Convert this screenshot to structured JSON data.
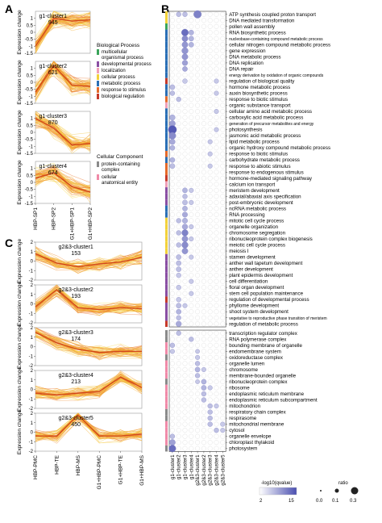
{
  "panels": {
    "A": "A",
    "B": "B",
    "C": "C"
  },
  "y_axis_label": "Expression change",
  "legend": {
    "biological_title": "Biological Process",
    "biological_items": [
      {
        "label": "multicellular organismal process",
        "color": "#3aa55a"
      },
      {
        "label": "developmental process",
        "color": "#8a4fa3"
      },
      {
        "label": "localization",
        "color": "#f0a0b8"
      },
      {
        "label": "cellular process",
        "color": "#f2d13a"
      },
      {
        "label": "metabolic process",
        "color": "#2a6fb5"
      },
      {
        "label": "response to stimulus",
        "color": "#e56a2a"
      },
      {
        "label": "biological regulation",
        "color": "#c63a2a"
      }
    ],
    "cellular_title": "Cellular Component",
    "cellular_items": [
      {
        "label": "protein-containing complex",
        "color": "#8a8a8a"
      },
      {
        "label": "cellular anatomical entity",
        "color": "#f08aa8"
      }
    ]
  },
  "chart_data": [
    {
      "type": "line",
      "panel": "A",
      "x": [
        "HBP-SP1",
        "HBP-SP2",
        "G1+HBP-SP1",
        "G1+HBP-SP2"
      ],
      "ylabel": "Expression change",
      "clusters": [
        {
          "name": "g1-cluster1",
          "count": "945",
          "ylim": [
            -1.5,
            1.5
          ],
          "ticks": [
            1,
            0.5,
            0,
            -0.5,
            -1,
            -1.5
          ],
          "profile": [
            -1.0,
            1.0,
            0.8,
            0.9
          ]
        },
        {
          "name": "g1-cluster2",
          "count": "621",
          "ylim": [
            -1.5,
            1.5
          ],
          "ticks": [
            1,
            0.5,
            0,
            -0.5,
            -1,
            -1.5
          ],
          "profile": [
            -0.7,
            1.2,
            -0.2,
            -0.3
          ]
        },
        {
          "name": "g1-cluster3",
          "count": "870",
          "ylim": [
            -1.5,
            1.5
          ],
          "ticks": [
            1,
            0.5,
            0,
            -0.5,
            -1,
            -1.5
          ],
          "profile": [
            1.0,
            0.3,
            -0.9,
            -0.8
          ]
        },
        {
          "name": "g1-cluster4",
          "count": "674",
          "ylim": [
            -1.5,
            1.5
          ],
          "ticks": [
            1,
            0.5,
            0,
            -0.5,
            -1,
            -1.5
          ],
          "profile": [
            0.3,
            0.7,
            -0.3,
            -0.7
          ]
        }
      ]
    },
    {
      "type": "line",
      "panel": "C",
      "x": [
        "HBP-PMC",
        "HBP-TE",
        "HBP-MS",
        "G1+HBP-PMC",
        "G1+HBP-TE",
        "G1+HBP-MS"
      ],
      "ylabel": "Expression change",
      "clusters": [
        {
          "name": "g2&3-cluster1",
          "count": "153",
          "ylim": [
            -2,
            2
          ],
          "ticks": [
            2,
            1,
            0,
            -1,
            -2
          ],
          "profile": [
            0.8,
            -0.2,
            -0.6,
            -0.3,
            -0.1,
            0.4
          ]
        },
        {
          "name": "g2&3-cluster2",
          "count": "193",
          "ylim": [
            -2,
            2
          ],
          "ticks": [
            2,
            1,
            0,
            -1,
            -2
          ],
          "profile": [
            -0.3,
            1.5,
            -0.4,
            -0.6,
            -0.4,
            -0.5
          ]
        },
        {
          "name": "g2&3-cluster3",
          "count": "174",
          "ylim": [
            -2,
            2
          ],
          "ticks": [
            2,
            1,
            0,
            -1,
            -2
          ],
          "profile": [
            1.5,
            0.4,
            -0.3,
            -0.6,
            -0.5,
            -0.5
          ]
        },
        {
          "name": "g2&3-cluster4",
          "count": "213",
          "ylim": [
            -2,
            2
          ],
          "ticks": [
            2,
            1,
            0,
            -1,
            -2
          ],
          "profile": [
            -0.4,
            -0.6,
            -0.4,
            -0.2,
            1.3,
            0.2
          ]
        },
        {
          "name": "g2&3-cluster5",
          "count": "450",
          "ylim": [
            -2,
            2
          ],
          "ticks": [
            2,
            1,
            0,
            -1,
            -2
          ],
          "profile": [
            -0.4,
            -0.4,
            1.8,
            -0.4,
            -0.4,
            -0.2
          ]
        }
      ]
    },
    {
      "type": "scatter",
      "panel": "B",
      "x_categories": [
        "g1-cluster1",
        "g1-cluster2",
        "g1-cluster3",
        "g1-cluster4",
        "g2&3-cluster1",
        "g2&3-cluster2",
        "g2&3-cluster3",
        "g2&3-cluster4",
        "g2&3-cluster5"
      ],
      "size_legend": {
        "title": "ratio",
        "values": [
          "0.0",
          "0.1",
          "0.3"
        ]
      },
      "color_legend": {
        "title": "-log10(qvalue)",
        "min": "2",
        "max": "15",
        "low_color": "#ffffff",
        "high_color": "#4a4fb0"
      },
      "bp_terms": [
        "ATP synthesis coupled proton transport",
        "DNA mediated transformation",
        "pollen wall assembly",
        "RNA biosynthetic process",
        "nucleobase-containing compound metabolic process",
        "cellular nitrogen compound metabolic process",
        "gene expression",
        "DNA metabolic process",
        "DNA replication",
        "DNA repair",
        "energy derivation by oxidation of organic compounds",
        "regulation of biological quality",
        "hormone metabolic process",
        "auxin biosynthetic process",
        "response to biotic stimulus",
        "organic substance transport",
        "cellular amino acid metabolic process",
        "carboxylic acid metabolic process",
        "generation of precursor metabolites and energy",
        "photosynthesis",
        "jasmonic acid metabolic process",
        "lipid metabolic process",
        "organic hydroxy compound metabolic process",
        "response to biotic stimulus",
        "carbohydrate metabolic process",
        "response to abiotic stimulus",
        "response to endogenous stimulus",
        "hormone-mediated signaling pathway",
        "calcium ion transport",
        "meristem development",
        "adaxial/abaxial axis specification",
        "post-embryonic development",
        "ncRNA metabolic process",
        "RNA processing",
        "mitotic cell cycle process",
        "organelle organization",
        "chromosome segregation",
        "ribonucleoprotein complex biogenesis",
        "meiotic cell cycle process",
        "meiosis I",
        "stamen development",
        "anther wall tapetum development",
        "anther development",
        "plant epidermis development",
        "cell differentiation",
        "floral organ development",
        "stem cell population maintenance",
        "regulation of developmental process",
        "phyllome development",
        "shoot system development",
        "vegetative to reproductive phase transition of meristem",
        "regulation of metabolic process"
      ],
      "cc_terms": [
        "transcription regulator complex",
        "RNA polymerase complex",
        "bounding membrane of organelle",
        "endomembrane system",
        "oxidoreductase complex",
        "organelle lumen",
        "chromosome",
        "membrane-bounded organelle",
        "ribonucleoprotein complex",
        "ribosome",
        "endoplasmic reticulum membrane",
        "endoplasmic reticulum subcompartment",
        "mitochondrion",
        "respiratory chain complex",
        "respirasome",
        "mitochondrial membrane",
        "cytosol",
        "organelle envelope",
        "chloroplast thylakoid",
        "photosystem"
      ],
      "bp_category_colors": [
        "#f2d13a",
        "#f2d13a",
        "#3aa55a",
        "#2a6fb5",
        "#2a6fb5",
        "#2a6fb5",
        "#2a6fb5",
        "#2a6fb5",
        "#2a6fb5",
        "#2a6fb5",
        "#2a6fb5",
        "#c63a2a",
        "#2a6fb5",
        "#2a6fb5",
        "#e56a2a",
        "#f0a0b8",
        "#2a6fb5",
        "#2a6fb5",
        "#2a6fb5",
        "#2a6fb5",
        "#2a6fb5",
        "#2a6fb5",
        "#2a6fb5",
        "#e56a2a",
        "#2a6fb5",
        "#e56a2a",
        "#e56a2a",
        "#c63a2a",
        "#f0a0b8",
        "#8a4fa3",
        "#8a4fa3",
        "#8a4fa3",
        "#2a6fb5",
        "#2a6fb5",
        "#f2d13a",
        "#f2d13a",
        "#f2d13a",
        "#f2d13a",
        "#f2d13a",
        "#f2d13a",
        "#8a4fa3",
        "#8a4fa3",
        "#8a4fa3",
        "#8a4fa3",
        "#8a4fa3",
        "#8a4fa3",
        "#8a4fa3",
        "#c63a2a",
        "#8a4fa3",
        "#8a4fa3",
        "#8a4fa3",
        "#c63a2a"
      ],
      "cc_category_colors": [
        "#8a8a8a",
        "#8a8a8a",
        "#f08aa8",
        "#f08aa8",
        "#8a8a8a",
        "#f08aa8",
        "#f08aa8",
        "#f08aa8",
        "#8a8a8a",
        "#f08aa8",
        "#f08aa8",
        "#f08aa8",
        "#f08aa8",
        "#8a8a8a",
        "#8a8a8a",
        "#f08aa8",
        "#f08aa8",
        "#f08aa8",
        "#f08aa8",
        "#8a8a8a"
      ],
      "points_bp": [
        [
          0,
          4,
          0.2,
          10
        ],
        [
          0,
          1,
          0.05,
          4
        ],
        [
          0,
          2,
          0.05,
          4
        ],
        [
          3,
          2,
          0.15,
          12
        ],
        [
          4,
          2,
          0.1,
          9
        ],
        [
          5,
          2,
          0.1,
          8
        ],
        [
          6,
          2,
          0.12,
          8
        ],
        [
          7,
          2,
          0.1,
          8
        ],
        [
          8,
          2,
          0.08,
          7
        ],
        [
          9,
          2,
          0.06,
          6
        ],
        [
          3,
          3,
          0.06,
          5
        ],
        [
          4,
          3,
          0.06,
          5
        ],
        [
          5,
          3,
          0.06,
          5
        ],
        [
          12,
          0,
          0.06,
          4
        ],
        [
          13,
          0,
          0.05,
          4
        ],
        [
          17,
          0,
          0.08,
          5
        ],
        [
          18,
          0,
          0.1,
          7
        ],
        [
          19,
          0,
          0.25,
          14
        ],
        [
          20,
          0,
          0.15,
          9
        ],
        [
          21,
          0,
          0.08,
          6
        ],
        [
          22,
          0,
          0.06,
          5
        ],
        [
          24,
          0,
          0.06,
          5
        ],
        [
          25,
          0,
          0.06,
          4
        ],
        [
          14,
          1,
          0.05,
          4
        ],
        [
          11,
          2,
          0.05,
          3
        ],
        [
          11,
          7,
          0.04,
          3
        ],
        [
          13,
          7,
          0.04,
          3
        ],
        [
          16,
          7,
          0.04,
          3
        ],
        [
          19,
          7,
          0.04,
          3
        ],
        [
          21,
          6,
          0.04,
          3
        ],
        [
          23,
          6,
          0.04,
          3
        ],
        [
          25,
          6,
          0.04,
          3
        ],
        [
          29,
          2,
          0.06,
          5
        ],
        [
          30,
          2,
          0.05,
          4
        ],
        [
          31,
          2,
          0.06,
          4
        ],
        [
          32,
          2,
          0.06,
          5
        ],
        [
          33,
          2,
          0.07,
          6
        ],
        [
          34,
          2,
          0.07,
          5
        ],
        [
          35,
          2,
          0.08,
          6
        ],
        [
          36,
          2,
          0.12,
          10
        ],
        [
          37,
          2,
          0.1,
          8
        ],
        [
          38,
          2,
          0.12,
          9
        ],
        [
          39,
          2,
          0.1,
          8
        ],
        [
          34,
          1,
          0.05,
          4
        ],
        [
          36,
          1,
          0.05,
          4
        ],
        [
          38,
          1,
          0.05,
          4
        ],
        [
          29,
          3,
          0.04,
          3
        ],
        [
          31,
          3,
          0.04,
          3
        ],
        [
          35,
          3,
          0.04,
          3
        ],
        [
          37,
          3,
          0.04,
          3
        ],
        [
          40,
          1,
          0.06,
          4
        ],
        [
          41,
          1,
          0.06,
          4
        ],
        [
          42,
          1,
          0.06,
          4
        ],
        [
          43,
          1,
          0.05,
          3
        ],
        [
          45,
          1,
          0.05,
          3
        ],
        [
          47,
          1,
          0.05,
          3
        ],
        [
          48,
          1,
          0.06,
          4
        ],
        [
          49,
          1,
          0.06,
          5
        ],
        [
          50,
          1,
          0.05,
          4
        ],
        [
          51,
          1,
          0.08,
          6
        ],
        [
          40,
          3,
          0.04,
          3
        ],
        [
          44,
          3,
          0.04,
          3
        ],
        [
          46,
          3,
          0.04,
          3
        ],
        [
          48,
          2,
          0.04,
          3
        ]
      ],
      "points_cc": [
        [
          0,
          1,
          0.05,
          4
        ],
        [
          1,
          3,
          0.05,
          4
        ],
        [
          2,
          0,
          0.05,
          4
        ],
        [
          3,
          0,
          0.04,
          3
        ],
        [
          4,
          4,
          0.04,
          3
        ],
        [
          5,
          4,
          0.05,
          4
        ],
        [
          6,
          4,
          0.06,
          5
        ],
        [
          7,
          4,
          0.05,
          4
        ],
        [
          8,
          5,
          0.06,
          5
        ],
        [
          9,
          5,
          0.06,
          5
        ],
        [
          10,
          5,
          0.05,
          4
        ],
        [
          11,
          5,
          0.05,
          4
        ],
        [
          12,
          6,
          0.05,
          4
        ],
        [
          13,
          6,
          0.05,
          4
        ],
        [
          14,
          6,
          0.05,
          4
        ],
        [
          15,
          6,
          0.05,
          4
        ],
        [
          16,
          7,
          0.05,
          4
        ],
        [
          17,
          0,
          0.05,
          4
        ],
        [
          18,
          0,
          0.1,
          7
        ],
        [
          19,
          0,
          0.15,
          12
        ],
        [
          6,
          5,
          0.04,
          3
        ],
        [
          9,
          6,
          0.04,
          3
        ],
        [
          12,
          7,
          0.04,
          3
        ],
        [
          15,
          8,
          0.04,
          3
        ],
        [
          16,
          8,
          0.04,
          3
        ],
        [
          3,
          4,
          0.03,
          3
        ],
        [
          8,
          4,
          0.03,
          3
        ]
      ]
    }
  ]
}
